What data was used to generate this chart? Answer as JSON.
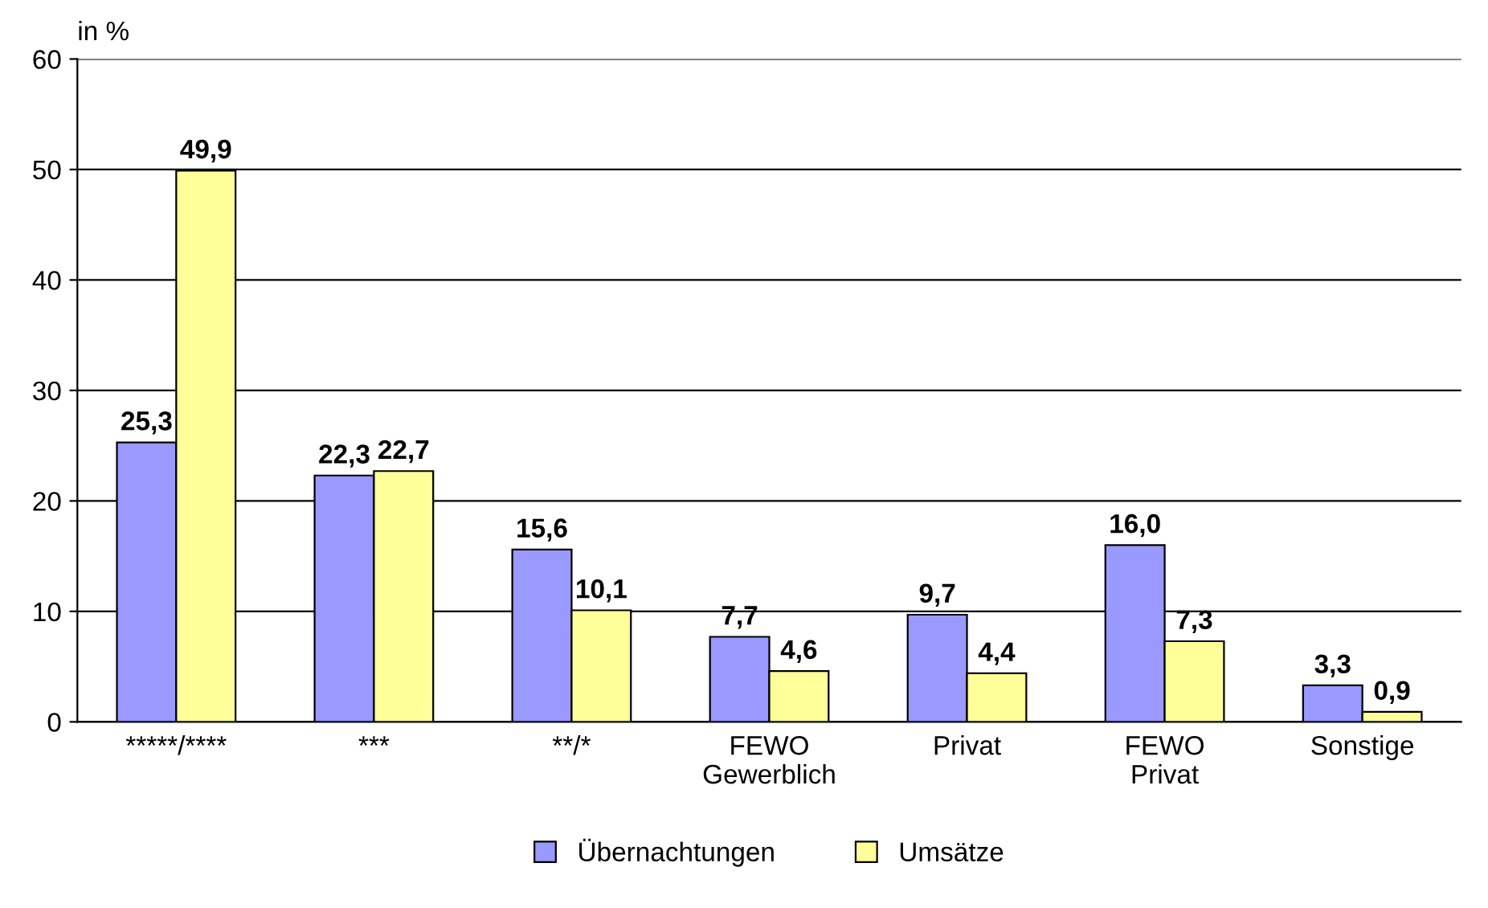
{
  "chart_data": {
    "type": "bar",
    "ylabel": "in %",
    "categories": [
      "*****/****",
      "***",
      "**/*",
      "FEWO\nGewerblich",
      "Privat",
      "FEWO\nPrivat",
      "Sonstige"
    ],
    "series": [
      {
        "name": "Übernachtungen",
        "color": "#9999ff",
        "values": [
          25.3,
          22.3,
          15.6,
          7.7,
          9.7,
          16.0,
          3.3
        ],
        "value_labels": [
          "25,3",
          "22,3",
          "15,6",
          "7,7",
          "9,7",
          "16,0",
          "3,3"
        ]
      },
      {
        "name": "Umsätze",
        "color": "#ffff99",
        "values": [
          49.9,
          22.7,
          10.1,
          4.6,
          4.4,
          7.3,
          0.9
        ],
        "value_labels": [
          "49,9",
          "22,7",
          "10,1",
          "4,6",
          "4,4",
          "7,3",
          "0,9"
        ]
      }
    ],
    "ylim": [
      0,
      60
    ],
    "yticks": [
      0,
      10,
      20,
      30,
      40,
      50,
      60
    ],
    "grid": "y",
    "legend": "bottom"
  }
}
